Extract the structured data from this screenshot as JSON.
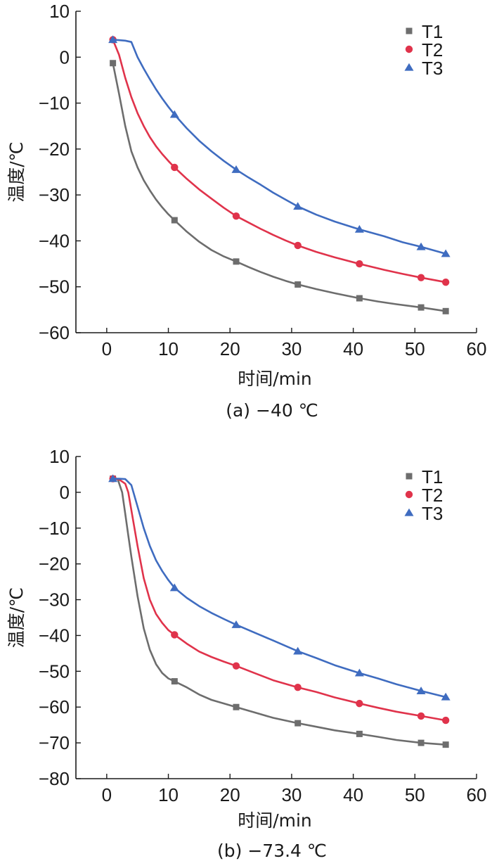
{
  "chart_data": [
    {
      "type": "line",
      "caption": "(a) −40 ℃",
      "xlabel": "时间/min",
      "ylabel": "温度/℃",
      "xlim": [
        -5,
        60
      ],
      "ylim": [
        -60,
        10
      ],
      "xticks": [
        0,
        10,
        20,
        30,
        40,
        50,
        60
      ],
      "yticks": [
        10,
        0,
        -10,
        -20,
        -30,
        -40,
        -50,
        -60
      ],
      "legend_position": "top-right",
      "series": [
        {
          "name": "T1",
          "color": "#6d6d6d",
          "marker": "square",
          "markers": [
            [
              1,
              -1.3
            ],
            [
              11,
              -35.5
            ],
            [
              21,
              -44.5
            ],
            [
              31,
              -49.5
            ],
            [
              41,
              -52.5
            ],
            [
              51,
              -54.5
            ],
            [
              55,
              -55.3
            ]
          ],
          "curve": [
            [
              1,
              -1.3
            ],
            [
              2,
              -8
            ],
            [
              3,
              -15
            ],
            [
              4,
              -20.5
            ],
            [
              5,
              -24
            ],
            [
              6,
              -26.8
            ],
            [
              7,
              -29
            ],
            [
              8,
              -31
            ],
            [
              9,
              -32.7
            ],
            [
              10,
              -34.2
            ],
            [
              11,
              -35.5
            ],
            [
              13,
              -38
            ],
            [
              15,
              -40.2
            ],
            [
              17,
              -42
            ],
            [
              19,
              -43.4
            ],
            [
              21,
              -44.5
            ],
            [
              23,
              -45.7
            ],
            [
              25,
              -46.8
            ],
            [
              27,
              -47.8
            ],
            [
              29,
              -48.7
            ],
            [
              31,
              -49.5
            ],
            [
              34,
              -50.5
            ],
            [
              37,
              -51.4
            ],
            [
              41,
              -52.5
            ],
            [
              44,
              -53.2
            ],
            [
              47,
              -53.8
            ],
            [
              51,
              -54.5
            ],
            [
              55,
              -55.3
            ]
          ]
        },
        {
          "name": "T2",
          "color": "#e0334b",
          "marker": "circle",
          "markers": [
            [
              1,
              3.8
            ],
            [
              11,
              -24
            ],
            [
              21,
              -34.6
            ],
            [
              31,
              -41
            ],
            [
              41,
              -45
            ],
            [
              51,
              -48
            ],
            [
              55,
              -49
            ]
          ],
          "curve": [
            [
              1,
              3.8
            ],
            [
              2,
              0.5
            ],
            [
              3,
              -4.5
            ],
            [
              4,
              -8.7
            ],
            [
              5,
              -12.2
            ],
            [
              6,
              -15
            ],
            [
              7,
              -17.4
            ],
            [
              8,
              -19.4
            ],
            [
              9,
              -21.1
            ],
            [
              10,
              -22.6
            ],
            [
              11,
              -24
            ],
            [
              13,
              -26.5
            ],
            [
              15,
              -28.8
            ],
            [
              17,
              -30.8
            ],
            [
              19,
              -32.8
            ],
            [
              21,
              -34.6
            ],
            [
              23,
              -36
            ],
            [
              25,
              -37.4
            ],
            [
              27,
              -38.7
            ],
            [
              29,
              -39.9
            ],
            [
              31,
              -41
            ],
            [
              34,
              -42.4
            ],
            [
              37,
              -43.6
            ],
            [
              41,
              -45
            ],
            [
              45,
              -46.3
            ],
            [
              48,
              -47.2
            ],
            [
              51,
              -48
            ],
            [
              55,
              -49
            ]
          ]
        },
        {
          "name": "T3",
          "color": "#3f6cc0",
          "marker": "triangle",
          "markers": [
            [
              1,
              3.8
            ],
            [
              11,
              -12.5
            ],
            [
              21,
              -24.5
            ],
            [
              31,
              -32.5
            ],
            [
              41,
              -37.5
            ],
            [
              51,
              -41.3
            ],
            [
              55,
              -42.8
            ]
          ],
          "curve": [
            [
              1,
              3.8
            ],
            [
              2,
              3.7
            ],
            [
              3,
              3.6
            ],
            [
              4,
              3.3
            ],
            [
              5,
              0
            ],
            [
              6,
              -2.5
            ],
            [
              7,
              -4.8
            ],
            [
              8,
              -7
            ],
            [
              9,
              -9
            ],
            [
              10,
              -10.8
            ],
            [
              11,
              -12.5
            ],
            [
              13,
              -15.5
            ],
            [
              15,
              -18.2
            ],
            [
              17,
              -20.5
            ],
            [
              19,
              -22.6
            ],
            [
              21,
              -24.5
            ],
            [
              23,
              -26.2
            ],
            [
              25,
              -27.8
            ],
            [
              27,
              -29.5
            ],
            [
              29,
              -31
            ],
            [
              31,
              -32.5
            ],
            [
              34,
              -34.3
            ],
            [
              37,
              -35.8
            ],
            [
              41,
              -37.5
            ],
            [
              45,
              -39
            ],
            [
              48,
              -40.3
            ],
            [
              51,
              -41.3
            ],
            [
              55,
              -42.8
            ]
          ]
        }
      ]
    },
    {
      "type": "line",
      "caption": "(b) −73.4 ℃",
      "xlabel": "时间/min",
      "ylabel": "温度/℃",
      "xlim": [
        -5,
        60
      ],
      "ylim": [
        -80,
        10
      ],
      "xticks": [
        0,
        10,
        20,
        30,
        40,
        50,
        60
      ],
      "yticks": [
        10,
        0,
        -10,
        -20,
        -30,
        -40,
        -50,
        -60,
        -70,
        -80
      ],
      "legend_position": "top-right",
      "series": [
        {
          "name": "T1",
          "color": "#6d6d6d",
          "marker": "square",
          "markers": [
            [
              1,
              3.8
            ],
            [
              11,
              -52.8
            ],
            [
              21,
              -60
            ],
            [
              31,
              -64.5
            ],
            [
              41,
              -67.5
            ],
            [
              51,
              -70
            ],
            [
              55,
              -70.5
            ]
          ],
          "curve": [
            [
              1,
              3.8
            ],
            [
              1.8,
              3.6
            ],
            [
              2.5,
              0
            ],
            [
              3,
              -6
            ],
            [
              3.5,
              -12
            ],
            [
              4,
              -18
            ],
            [
              5,
              -29
            ],
            [
              6,
              -38
            ],
            [
              7,
              -44
            ],
            [
              8,
              -48
            ],
            [
              9,
              -50.5
            ],
            [
              10,
              -52
            ],
            [
              11,
              -52.8
            ],
            [
              13,
              -54.5
            ],
            [
              15,
              -56.5
            ],
            [
              17,
              -58
            ],
            [
              19,
              -59
            ],
            [
              21,
              -60
            ],
            [
              24,
              -61.5
            ],
            [
              27,
              -63
            ],
            [
              31,
              -64.5
            ],
            [
              34,
              -65.5
            ],
            [
              37,
              -66.5
            ],
            [
              41,
              -67.5
            ],
            [
              44,
              -68.3
            ],
            [
              47,
              -69.2
            ],
            [
              51,
              -70
            ],
            [
              55,
              -70.5
            ]
          ]
        },
        {
          "name": "T2",
          "color": "#e0334b",
          "marker": "circle",
          "markers": [
            [
              1,
              3.8
            ],
            [
              11,
              -39.8
            ],
            [
              21,
              -48.5
            ],
            [
              31,
              -54.5
            ],
            [
              41,
              -59
            ],
            [
              51,
              -62.5
            ],
            [
              55,
              -63.7
            ]
          ],
          "curve": [
            [
              1,
              3.8
            ],
            [
              2,
              3.6
            ],
            [
              3,
              2.4
            ],
            [
              3.5,
              0
            ],
            [
              4,
              -5
            ],
            [
              5,
              -15
            ],
            [
              6,
              -24
            ],
            [
              7,
              -30
            ],
            [
              8,
              -34
            ],
            [
              9,
              -36.5
            ],
            [
              10,
              -38.5
            ],
            [
              11,
              -39.8
            ],
            [
              13,
              -42.3
            ],
            [
              15,
              -44.5
            ],
            [
              17,
              -46
            ],
            [
              19,
              -47.3
            ],
            [
              21,
              -48.5
            ],
            [
              24,
              -50.5
            ],
            [
              27,
              -52.5
            ],
            [
              31,
              -54.5
            ],
            [
              34,
              -55.8
            ],
            [
              37,
              -57.3
            ],
            [
              41,
              -59
            ],
            [
              44,
              -60.2
            ],
            [
              47,
              -61.3
            ],
            [
              51,
              -62.5
            ],
            [
              55,
              -63.7
            ]
          ]
        },
        {
          "name": "T3",
          "color": "#3f6cc0",
          "marker": "triangle",
          "markers": [
            [
              1,
              3.8
            ],
            [
              11,
              -26.7
            ],
            [
              21,
              -37
            ],
            [
              31,
              -44.4
            ],
            [
              41,
              -50.5
            ],
            [
              51,
              -55.5
            ],
            [
              55,
              -57.2
            ]
          ],
          "curve": [
            [
              1,
              3.8
            ],
            [
              2,
              3.8
            ],
            [
              3,
              3.7
            ],
            [
              4,
              2
            ],
            [
              5,
              -4
            ],
            [
              6,
              -10
            ],
            [
              7,
              -15
            ],
            [
              8,
              -19
            ],
            [
              9,
              -22
            ],
            [
              10,
              -24.5
            ],
            [
              11,
              -26.7
            ],
            [
              13,
              -29.5
            ],
            [
              15,
              -31.8
            ],
            [
              17,
              -33.7
            ],
            [
              19,
              -35.4
            ],
            [
              21,
              -37
            ],
            [
              24,
              -39.2
            ],
            [
              27,
              -41.4
            ],
            [
              31,
              -44.4
            ],
            [
              34,
              -46.3
            ],
            [
              37,
              -48.3
            ],
            [
              41,
              -50.5
            ],
            [
              44,
              -52
            ],
            [
              47,
              -53.6
            ],
            [
              51,
              -55.5
            ],
            [
              55,
              -57.2
            ]
          ]
        }
      ]
    }
  ]
}
